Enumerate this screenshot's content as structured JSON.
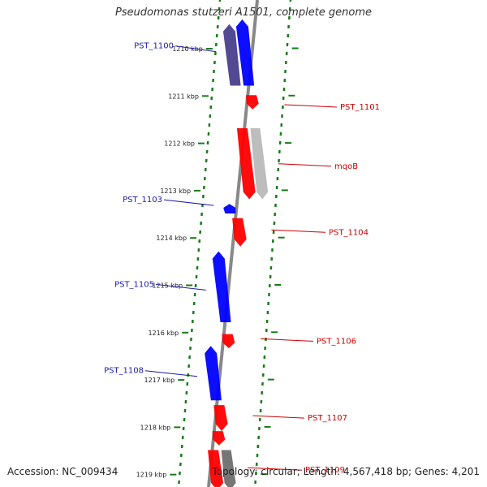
{
  "title": "Pseudomonas stutzeri A1501, complete genome",
  "footer": {
    "accession": "Accession: NC_009434",
    "topology": "Topology: circular; Length: 4,567,418 bp; Genes: 4,201"
  },
  "colors": {
    "forward_gene": "#0000ff",
    "forward_gene_shaded": "#4a3f8c",
    "reverse_gene": "#ff0000",
    "gray_gene": "#b9b9b9",
    "dark_gray_gene": "#6f6f6f",
    "tick": "#1a7a1a",
    "backbone": "#888888",
    "forward_label": "#1a1aa6",
    "reverse_label": "#cc0000"
  },
  "scale": {
    "unit": "kbp",
    "ticks": [
      {
        "kbp": 1210,
        "label": "1210 kbp"
      },
      {
        "kbp": 1211,
        "label": "1211 kbp"
      },
      {
        "kbp": 1212,
        "label": "1212 kbp"
      },
      {
        "kbp": 1213,
        "label": "1213 kbp"
      },
      {
        "kbp": 1214,
        "label": "1214 kbp"
      },
      {
        "kbp": 1215,
        "label": "1215 kbp"
      },
      {
        "kbp": 1216,
        "label": "1216 kbp"
      },
      {
        "kbp": 1217,
        "label": "1217 kbp"
      },
      {
        "kbp": 1218,
        "label": "1218 kbp"
      },
      {
        "kbp": 1219,
        "label": "1219 kbp"
      }
    ]
  },
  "genes": [
    {
      "label": "PST_1100",
      "strand": "forward",
      "start": 1209.55,
      "end": 1210.85,
      "style": "shaded"
    },
    {
      "label": "",
      "strand": "forward",
      "start": 1209.45,
      "end": 1210.85,
      "style": "normal"
    },
    {
      "label": "PST_1101",
      "strand": "reverse",
      "start": 1211.05,
      "end": 1211.35,
      "style": "normal"
    },
    {
      "label": "mqoB",
      "strand": "reverse",
      "start": 1211.75,
      "end": 1213.25,
      "style": "normal"
    },
    {
      "label": "",
      "strand": "reverse",
      "start": 1211.75,
      "end": 1213.25,
      "style": "gray"
    },
    {
      "label": "PST_1103",
      "strand": "forward",
      "start": 1213.35,
      "end": 1213.55,
      "style": "normal"
    },
    {
      "label": "PST_1104",
      "strand": "reverse",
      "start": 1213.65,
      "end": 1214.25,
      "style": "normal"
    },
    {
      "label": "PST_1105",
      "strand": "forward",
      "start": 1214.35,
      "end": 1215.85,
      "style": "normal"
    },
    {
      "label": "PST_1106",
      "strand": "reverse",
      "start": 1216.1,
      "end": 1216.4,
      "style": "normal"
    },
    {
      "label": "PST_1108",
      "strand": "forward",
      "start": 1216.35,
      "end": 1217.5,
      "style": "normal"
    },
    {
      "label": "PST_1107",
      "strand": "reverse",
      "start": 1217.6,
      "end": 1218.15,
      "style": "normal"
    },
    {
      "label": "",
      "strand": "reverse",
      "start": 1218.15,
      "end": 1218.45,
      "style": "normal"
    },
    {
      "label": "PST_1109",
      "strand": "reverse",
      "start": 1218.55,
      "end": 1219.4,
      "style": "normal"
    },
    {
      "label": "",
      "strand": "reverse",
      "start": 1218.55,
      "end": 1219.4,
      "style": "dark_gray"
    }
  ]
}
